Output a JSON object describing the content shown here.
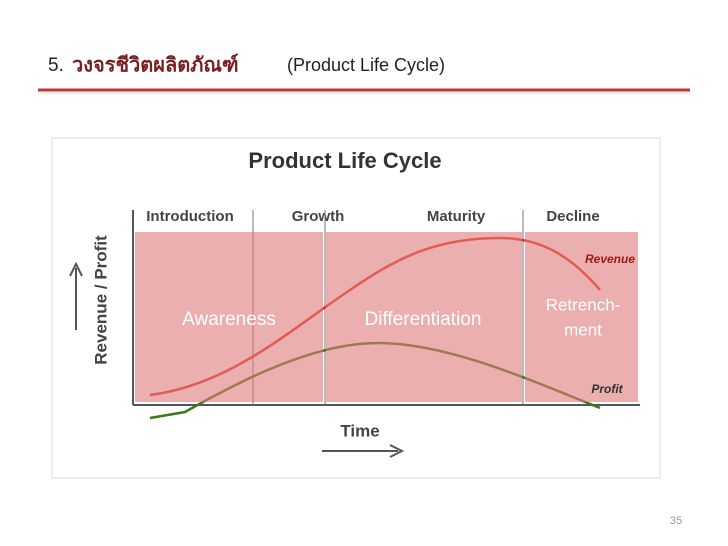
{
  "slide": {
    "title": {
      "number": "5.",
      "thai": "วงจรชีวิตผลิตภัณฑ์",
      "english": "(Product Life Cycle)"
    },
    "page_number": "35"
  },
  "diagram": {
    "title": "Product Life Cycle",
    "stages": [
      "Introduction",
      "Growth",
      "Maturity",
      "Decline"
    ],
    "y_label": "Revenue / Profit",
    "x_label": "Time",
    "curves": {
      "revenue": "Revenue",
      "profit": "Profit"
    },
    "overlays": {
      "awareness": "Awareness",
      "differentiation": "Differentiation",
      "retrenchment": [
        "Retrench-",
        "ment"
      ]
    }
  }
}
